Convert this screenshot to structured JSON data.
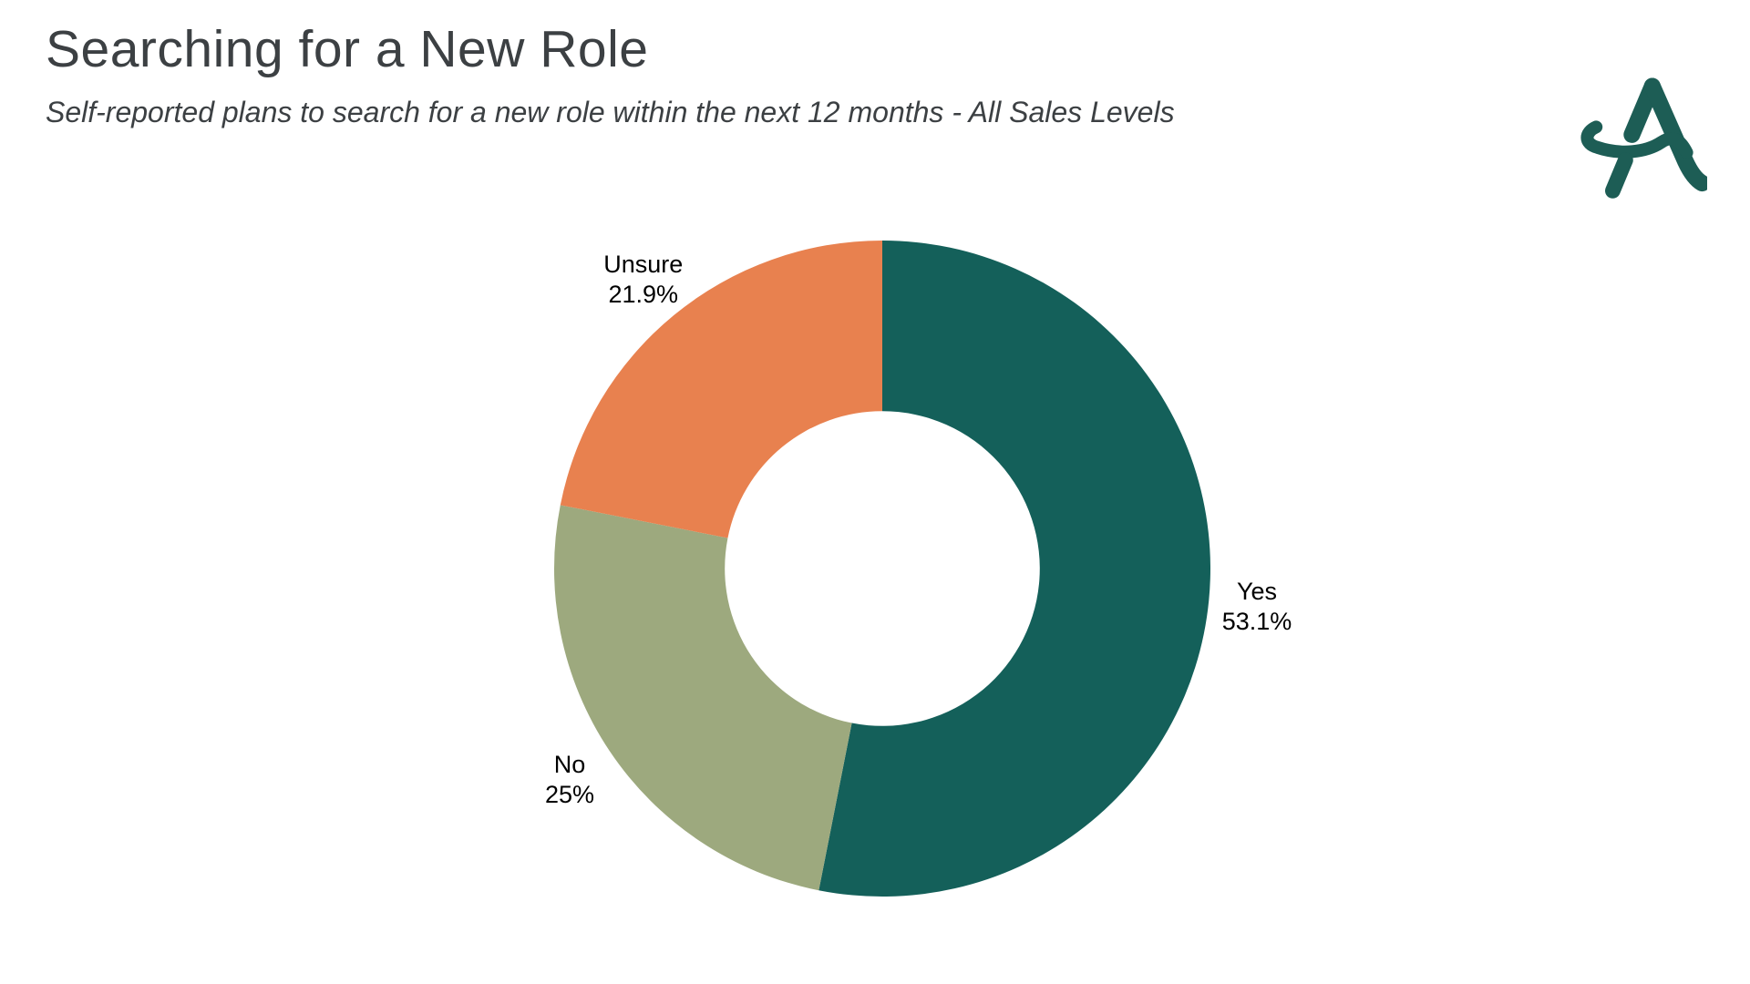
{
  "header": {
    "title": "Searching for a New Role",
    "subtitle": "Self-reported plans to search for a new role within the next 12 months - All Sales Levels"
  },
  "branding": {
    "logo_icon": "stylized-letter-A-swoosh",
    "logo_color": "#1d5d55"
  },
  "colors": {
    "background": "#ffffff",
    "heading_text": "#3c4043",
    "slice_label_text": "#000000"
  },
  "chart_data": {
    "type": "pie",
    "variant": "donut",
    "title": "Searching for a New Role",
    "subtitle": "Self-reported plans to search for a new role within the next 12 months - All Sales Levels",
    "direction": "clockwise",
    "start_angle_deg": 0,
    "inner_radius_ratio": 0.48,
    "label_position": "outside",
    "legend": "none",
    "slices": [
      {
        "label": "Yes",
        "value": 53.1,
        "value_label": "53.1%",
        "color": "#14605a"
      },
      {
        "label": "No",
        "value": 25,
        "value_label": "25%",
        "color": "#9da97e"
      },
      {
        "label": "Unsure",
        "value": 21.9,
        "value_label": "21.9%",
        "color": "#e8814f"
      }
    ]
  }
}
